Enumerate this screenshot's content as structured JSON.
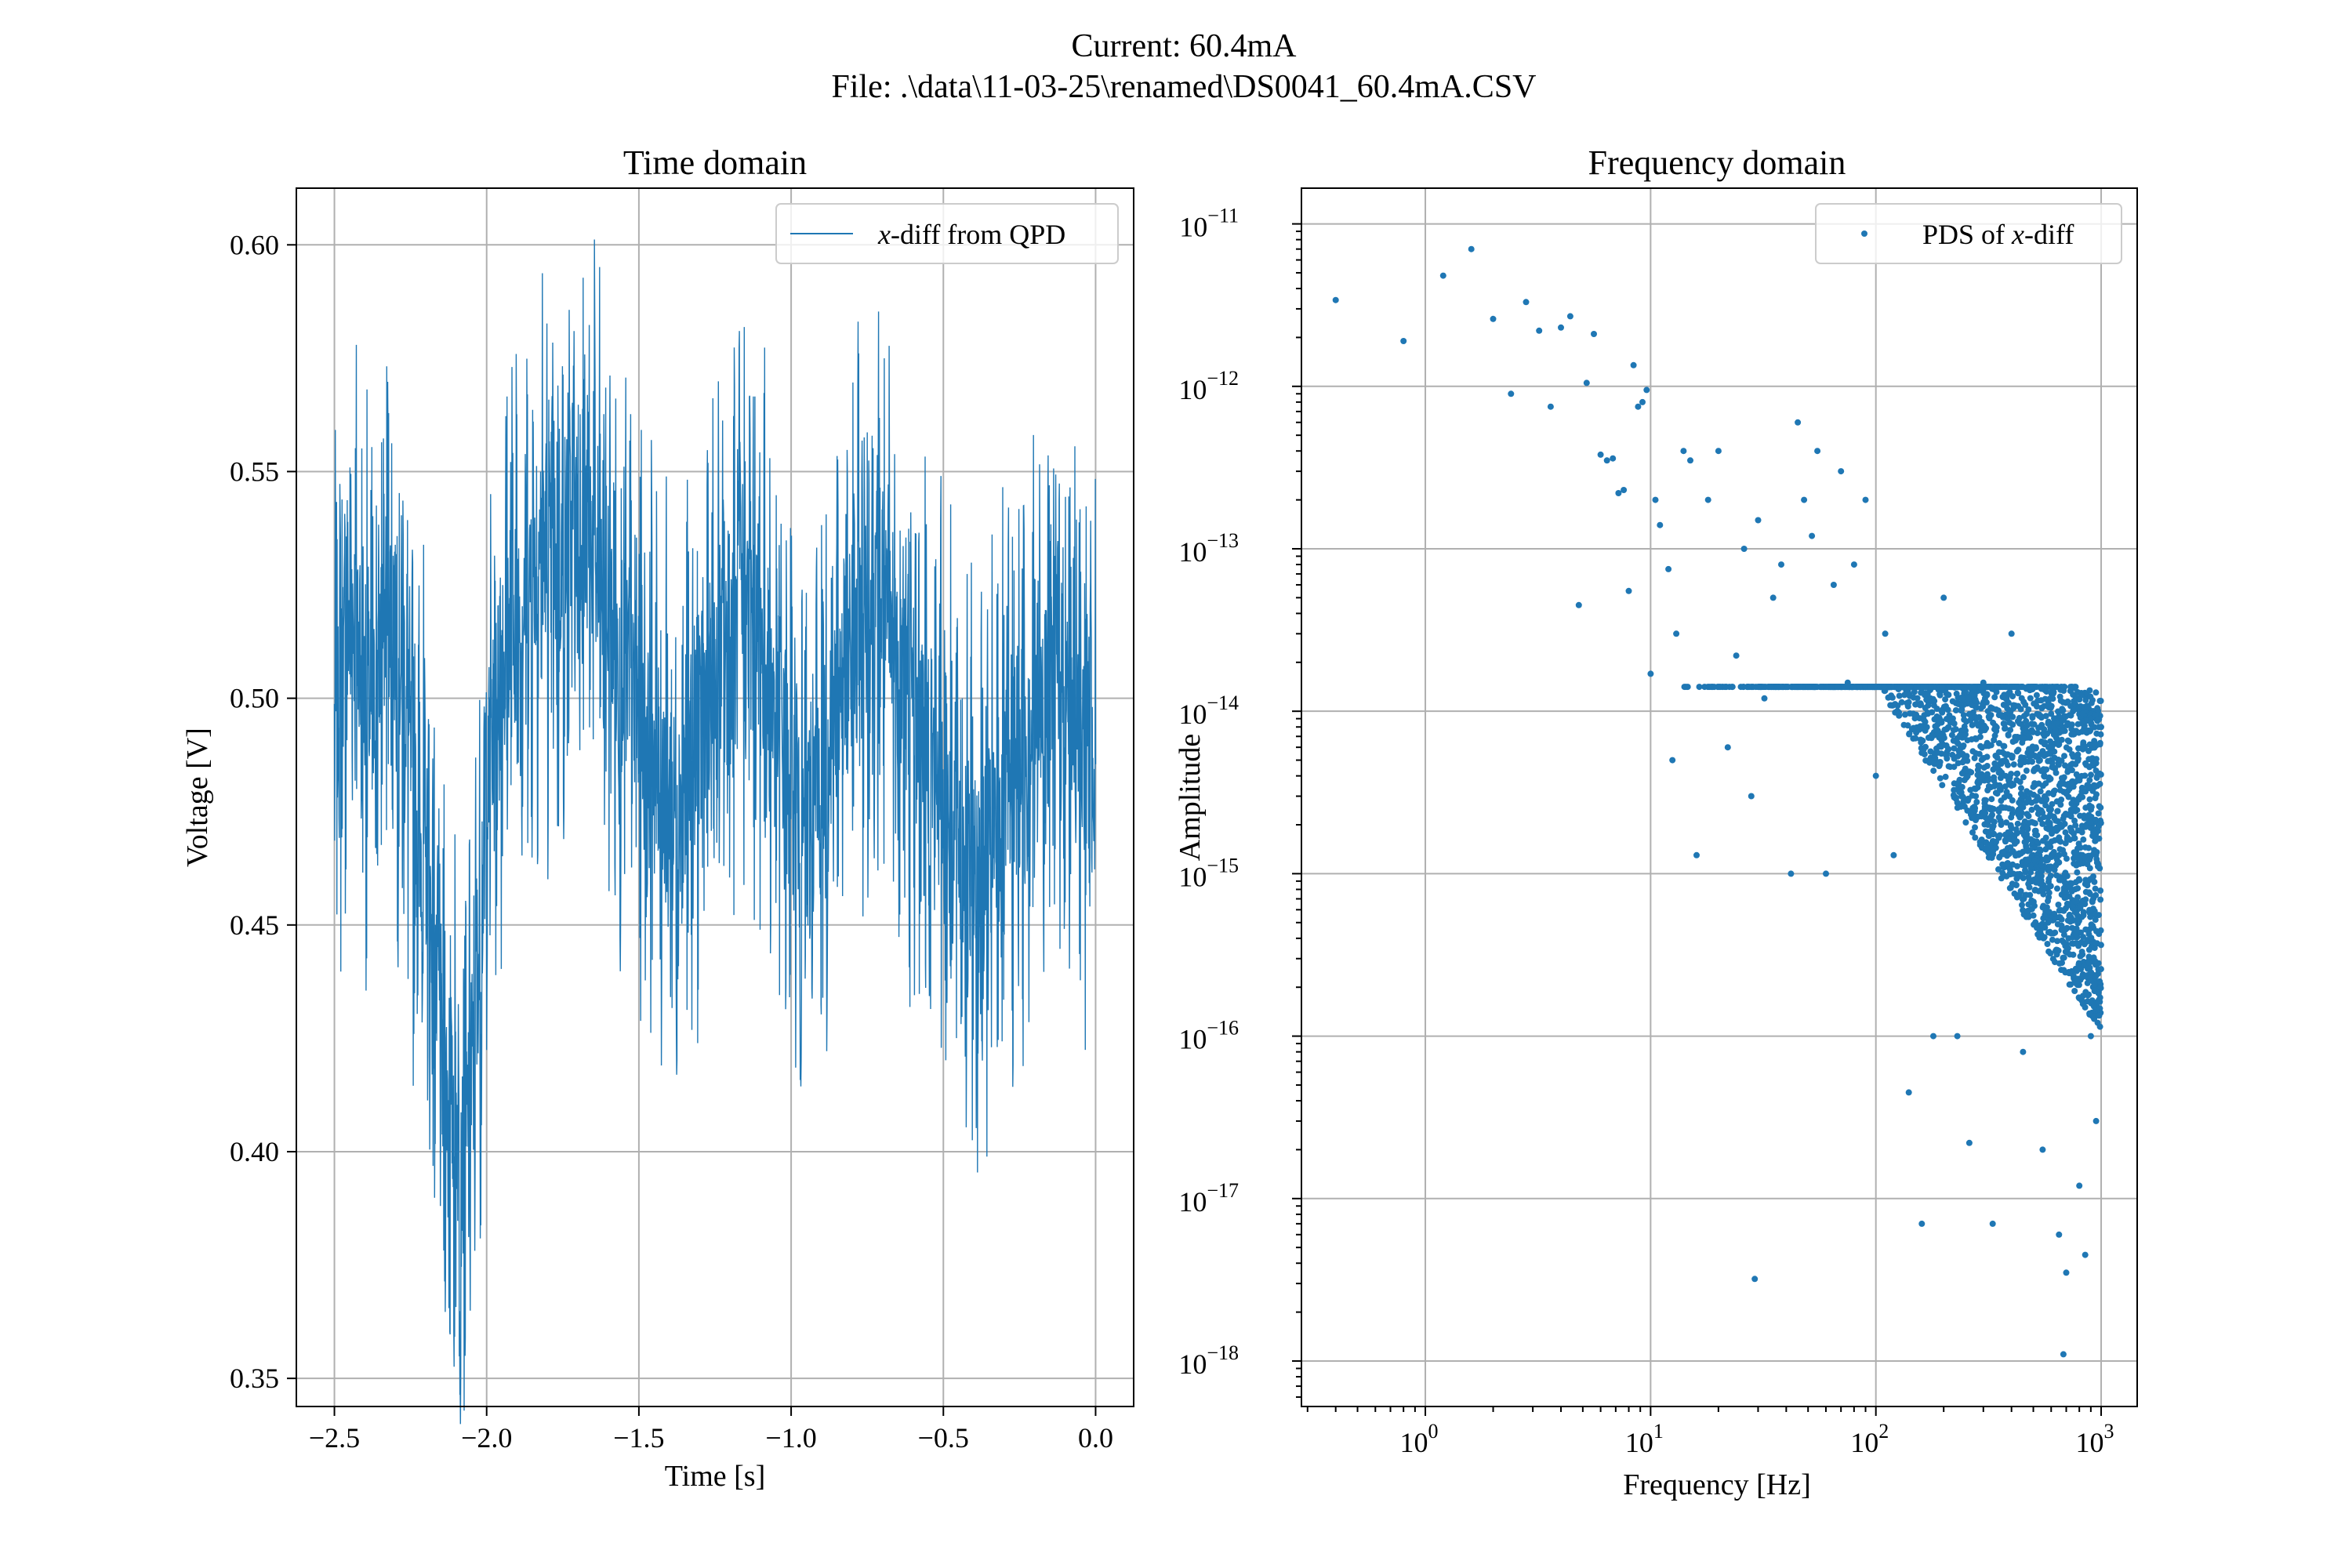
{
  "figure": {
    "title_line1": "Current: 60.4mA",
    "title_line2": "File: .\\data\\11-03-25\\renamed\\DS0041_60.4mA.CSV",
    "accent_color": "#1f77b4"
  },
  "chart_data": [
    {
      "type": "line",
      "title": "Time domain",
      "xlabel": "Time [s]",
      "ylabel": "Voltage [V]",
      "xlim": [
        -2.625,
        0.125
      ],
      "ylim": [
        0.3438,
        0.6125
      ],
      "xticks": [
        -2.5,
        -2.0,
        -1.5,
        -1.0,
        -0.5,
        0.0
      ],
      "xtick_labels": [
        "−2.5",
        "−2.0",
        "−1.5",
        "−1.0",
        "−0.5",
        "0.0"
      ],
      "yticks": [
        0.35,
        0.4,
        0.45,
        0.5,
        0.55,
        0.6
      ],
      "ytick_labels": [
        "0.35",
        "0.40",
        "0.45",
        "0.50",
        "0.55",
        "0.60"
      ],
      "grid": true,
      "legend_position": "top-right",
      "series": [
        {
          "name": "x-diff from QPD",
          "legend_label": {
            "var": "x",
            "rest": "-diff from QPD"
          },
          "color": "#1f77b4",
          "x_start": -2.5,
          "x_end": 0.0,
          "values": [
            0.49,
            0.505,
            0.52,
            0.515,
            0.5,
            0.495,
            0.51,
            0.525,
            0.515,
            0.5,
            0.485,
            0.47,
            0.46,
            0.44,
            0.42,
            0.41,
            0.405,
            0.4,
            0.42,
            0.45,
            0.48,
            0.5,
            0.51,
            0.515,
            0.52,
            0.525,
            0.53,
            0.535,
            0.53,
            0.525,
            0.53,
            0.535,
            0.54,
            0.535,
            0.53,
            0.52,
            0.515,
            0.51,
            0.505,
            0.5,
            0.495,
            0.49,
            0.485,
            0.48,
            0.475,
            0.48,
            0.485,
            0.49,
            0.495,
            0.5,
            0.505,
            0.51,
            0.515,
            0.52,
            0.52,
            0.515,
            0.51,
            0.5,
            0.49,
            0.48,
            0.475,
            0.47,
            0.475,
            0.48,
            0.49,
            0.5,
            0.505,
            0.51,
            0.515,
            0.52,
            0.525,
            0.52,
            0.515,
            0.51,
            0.505,
            0.5,
            0.495,
            0.49,
            0.485,
            0.48,
            0.475,
            0.47,
            0.465,
            0.46,
            0.46,
            0.465,
            0.47,
            0.475,
            0.48,
            0.485,
            0.49,
            0.495,
            0.5,
            0.505,
            0.51,
            0.505,
            0.5,
            0.495,
            0.49,
            0.49
          ],
          "amplitude_note": "envelope approximated"
        }
      ]
    },
    {
      "type": "scatter",
      "title": "Frequency domain",
      "xlabel": "Frequency [Hz]",
      "ylabel": "Amplitude",
      "xscale": "log",
      "yscale": "log",
      "xlim_log10": [
        -0.55,
        3.16
      ],
      "ylim_log10": [
        -18.28,
        -10.78
      ],
      "xticks_log10": [
        0,
        1,
        2,
        3
      ],
      "yticks_log10": [
        -18,
        -17,
        -16,
        -15,
        -14,
        -13,
        -12,
        -11
      ],
      "grid": true,
      "legend_position": "top-right",
      "series": [
        {
          "name": "PDS of x-diff",
          "legend_label": {
            "prefix": "PDS of ",
            "var": "x",
            "rest": "-diff"
          },
          "color": "#1f77b4",
          "points": [
            [
              0.4,
              3.4e-12
            ],
            [
              0.8,
              1.9e-12
            ],
            [
              1.2,
              4.8e-12
            ],
            [
              1.6,
              7e-12
            ],
            [
              2.0,
              2.6e-12
            ],
            [
              2.4,
              9e-13
            ],
            [
              2.8,
              3.3e-12
            ],
            [
              3.2,
              2.2e-12
            ],
            [
              3.6,
              7.5e-13
            ],
            [
              4.0,
              2.3e-12
            ],
            [
              4.4,
              2.7e-12
            ],
            [
              4.8,
              4.5e-14
            ],
            [
              5.2,
              1.05e-12
            ],
            [
              5.6,
              2.1e-12
            ],
            [
              6.0,
              3.8e-13
            ],
            [
              6.4,
              3.5e-13
            ],
            [
              6.8,
              3.6e-13
            ],
            [
              7.2,
              2.2e-13
            ],
            [
              7.6,
              2.3e-13
            ],
            [
              8.0,
              5.5e-14
            ],
            [
              8.4,
              1.35e-12
            ],
            [
              8.8,
              7.5e-13
            ],
            [
              9.2,
              8e-13
            ],
            [
              9.6,
              9.5e-13
            ],
            [
              10.0,
              1.7e-14
            ],
            [
              10.5,
              2e-13
            ],
            [
              11.0,
              1.4e-13
            ],
            [
              12.0,
              7.5e-14
            ],
            [
              12.5,
              5e-15
            ],
            [
              13.0,
              3e-14
            ],
            [
              14.0,
              4e-13
            ],
            [
              15.0,
              3.5e-13
            ],
            [
              16.0,
              1.3e-15
            ],
            [
              18.0,
              2e-13
            ],
            [
              20.0,
              4e-13
            ],
            [
              22.0,
              6e-15
            ],
            [
              24.0,
              2.2e-14
            ],
            [
              26.0,
              1e-13
            ],
            [
              28.0,
              3e-15
            ],
            [
              29.0,
              3.2e-18
            ],
            [
              30.0,
              1.5e-13
            ],
            [
              32.0,
              1.2e-14
            ],
            [
              35.0,
              5e-14
            ],
            [
              38.0,
              8e-14
            ],
            [
              42.0,
              1e-15
            ],
            [
              45.0,
              6e-13
            ],
            [
              48.0,
              2e-13
            ],
            [
              52.0,
              1.2e-13
            ],
            [
              55.0,
              4e-13
            ],
            [
              60.0,
              1e-15
            ],
            [
              65.0,
              6e-14
            ],
            [
              70.0,
              3e-13
            ],
            [
              75.0,
              1.5e-14
            ],
            [
              80.0,
              8e-14
            ],
            [
              90.0,
              2e-13
            ],
            [
              100.0,
              4e-15
            ],
            [
              110.0,
              3e-14
            ],
            [
              120.0,
              1.3e-15
            ],
            [
              140.0,
              4.5e-17
            ],
            [
              160.0,
              7e-18
            ],
            [
              180.0,
              1e-16
            ],
            [
              200.0,
              5e-14
            ],
            [
              230.0,
              1e-16
            ],
            [
              260.0,
              2.2e-17
            ],
            [
              300.0,
              1.5e-14
            ],
            [
              330.0,
              7e-18
            ],
            [
              360.0,
              2e-15
            ],
            [
              400.0,
              3e-14
            ],
            [
              450.0,
              8e-17
            ],
            [
              500.0,
              1.3e-15
            ],
            [
              550.0,
              2e-17
            ],
            [
              600.0,
              5e-15
            ],
            [
              650.0,
              6e-18
            ],
            [
              680.0,
              1.1e-18
            ],
            [
              700.0,
              3.5e-18
            ],
            [
              750.0,
              1e-14
            ],
            [
              800.0,
              1.2e-17
            ],
            [
              850.0,
              4.5e-18
            ],
            [
              900.0,
              1e-16
            ],
            [
              950.0,
              3e-17
            ],
            [
              1000.0,
              8e-15
            ]
          ]
        }
      ]
    }
  ]
}
